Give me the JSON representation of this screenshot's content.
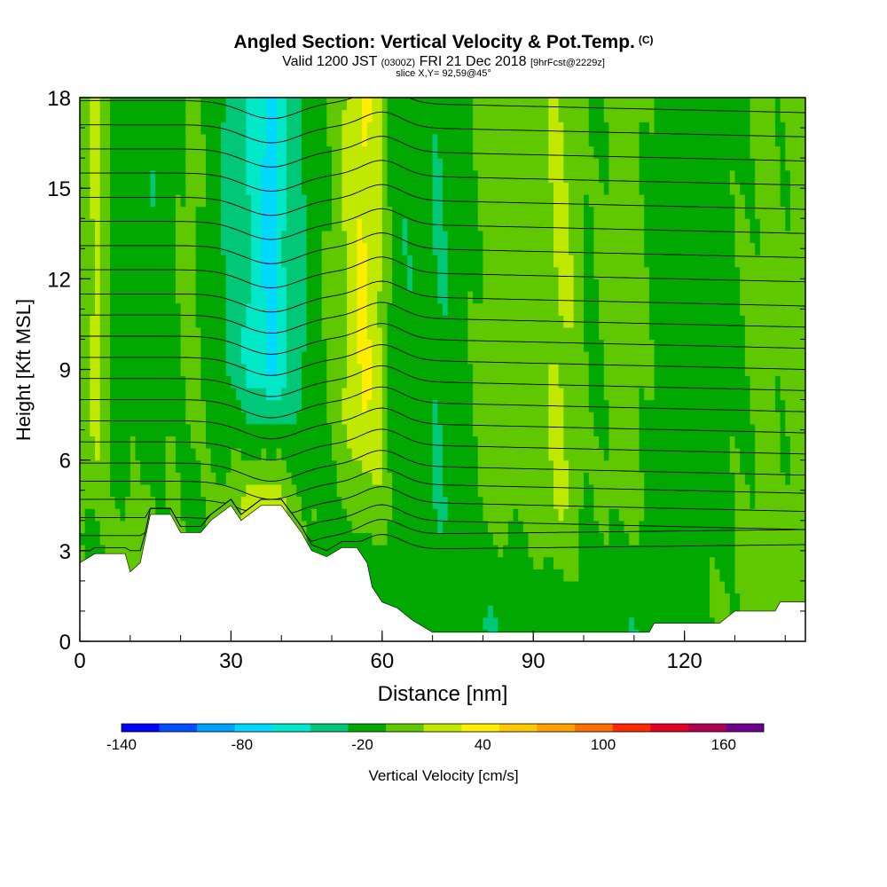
{
  "title": {
    "main": "Angled Section: Vertical Velocity & Pot.Temp.",
    "unit_tag": "(C)",
    "valid_prefix": "Valid 1200 JST",
    "valid_z": "(0300Z)",
    "valid_date": "FRI 21 Dec 2018",
    "forecast": "[9hrFcst@2229z]",
    "slice": "slice X,Y= 92,59@45°"
  },
  "colors": {
    "ground": "#ffffff",
    "contour": "#000000",
    "background": "#ffffff"
  },
  "chart_data": {
    "type": "heatmap",
    "xlabel": "Distance [nm]",
    "ylabel": "Height [Kft MSL]",
    "xlim": [
      0,
      144
    ],
    "ylim": [
      0,
      18
    ],
    "xticks": [
      0,
      30,
      60,
      90,
      120
    ],
    "yticks": [
      0,
      3,
      6,
      9,
      12,
      15,
      18
    ],
    "colorbar": {
      "label": "Vertical Velocity [cm/s]",
      "min": -140,
      "max": 180,
      "step": 20,
      "tick_labels": [
        "-140",
        "-80",
        "-20",
        "40",
        "100",
        "160"
      ],
      "tick_values": [
        -140,
        -80,
        -20,
        40,
        100,
        160
      ],
      "colors": [
        "#0000ff",
        "#0050ff",
        "#00a0ff",
        "#00d8ff",
        "#00e8c8",
        "#00c878",
        "#00a800",
        "#60c800",
        "#c0e800",
        "#ffee00",
        "#ffc800",
        "#ffa000",
        "#ff6e00",
        "#ff2800",
        "#e00028",
        "#b00050",
        "#6e0090"
      ]
    },
    "terrain": [
      [
        0,
        2.6
      ],
      [
        3,
        2.9
      ],
      [
        9,
        2.9
      ],
      [
        10,
        2.3
      ],
      [
        12,
        2.6
      ],
      [
        13,
        3.4
      ],
      [
        14,
        4.2
      ],
      [
        18,
        4.2
      ],
      [
        20,
        3.6
      ],
      [
        24,
        3.6
      ],
      [
        26,
        4.0
      ],
      [
        30,
        4.5
      ],
      [
        32,
        4.0
      ],
      [
        36,
        4.5
      ],
      [
        40,
        4.5
      ],
      [
        44,
        3.6
      ],
      [
        46,
        3.0
      ],
      [
        49,
        2.8
      ],
      [
        52,
        3.1
      ],
      [
        55,
        3.1
      ],
      [
        57,
        2.6
      ],
      [
        58,
        1.8
      ],
      [
        60,
        1.3
      ],
      [
        63,
        1.1
      ],
      [
        66,
        0.7
      ],
      [
        70,
        0.3
      ],
      [
        80,
        0.3
      ],
      [
        90,
        0.3
      ],
      [
        113,
        0.3
      ],
      [
        114,
        0.6
      ],
      [
        127,
        0.6
      ],
      [
        130,
        1.0
      ],
      [
        138,
        1.0
      ],
      [
        139,
        1.3
      ],
      [
        144,
        1.3
      ]
    ],
    "w_columns": [
      {
        "x": 0.5,
        "w": 10
      },
      {
        "x": 3.5,
        "w": 28
      },
      {
        "x": 7,
        "w": -14
      },
      {
        "x": 10,
        "w": -2
      },
      {
        "x": 14,
        "w": -18
      },
      {
        "x": 18,
        "w": -6
      },
      {
        "x": 22,
        "w": 6
      },
      {
        "x": 26,
        "w": -8
      },
      {
        "x": 29,
        "w": -22
      },
      {
        "x": 32,
        "w": -34
      },
      {
        "x": 35,
        "w": -48
      },
      {
        "x": 38,
        "w": -72
      },
      {
        "x": 41,
        "w": -38
      },
      {
        "x": 44,
        "w": -24
      },
      {
        "x": 47,
        "w": -6
      },
      {
        "x": 50,
        "w": 4
      },
      {
        "x": 53,
        "w": 22
      },
      {
        "x": 56,
        "w": 44
      },
      {
        "x": 59,
        "w": 30
      },
      {
        "x": 62,
        "w": -8
      },
      {
        "x": 65,
        "w": -18
      },
      {
        "x": 68,
        "w": -8
      },
      {
        "x": 71,
        "w": -22
      },
      {
        "x": 74,
        "w": -14
      },
      {
        "x": 77,
        "w": -4
      },
      {
        "x": 80,
        "w": 4
      },
      {
        "x": 84,
        "w": 10
      },
      {
        "x": 88,
        "w": 4
      },
      {
        "x": 92,
        "w": 12
      },
      {
        "x": 95,
        "w": 24
      },
      {
        "x": 98,
        "w": 16
      },
      {
        "x": 101,
        "w": -4
      },
      {
        "x": 105,
        "w": 4
      },
      {
        "x": 109,
        "w": 10
      },
      {
        "x": 113,
        "w": -2
      },
      {
        "x": 116,
        "w": -8
      },
      {
        "x": 120,
        "w": -12
      },
      {
        "x": 124,
        "w": -10
      },
      {
        "x": 128,
        "w": -6
      },
      {
        "x": 132,
        "w": 0
      },
      {
        "x": 136,
        "w": 6
      },
      {
        "x": 140,
        "w": 2
      },
      {
        "x": 143.5,
        "w": 8
      }
    ],
    "low_level_w": [
      {
        "x": 3,
        "w": -2
      },
      {
        "x": 10,
        "w": 8
      },
      {
        "x": 16,
        "w": 2
      },
      {
        "x": 22,
        "w": -4
      },
      {
        "x": 28,
        "w": 4
      },
      {
        "x": 36,
        "w": 30
      },
      {
        "x": 42,
        "w": 12
      },
      {
        "x": 48,
        "w": -6
      },
      {
        "x": 54,
        "w": -4
      },
      {
        "x": 60,
        "w": -8
      },
      {
        "x": 66,
        "w": -6
      },
      {
        "x": 72,
        "w": -10
      },
      {
        "x": 80,
        "w": -18
      },
      {
        "x": 88,
        "w": -16
      },
      {
        "x": 96,
        "w": -10
      },
      {
        "x": 104,
        "w": -14
      },
      {
        "x": 112,
        "w": -18
      },
      {
        "x": 120,
        "w": -8
      },
      {
        "x": 128,
        "w": 2
      },
      {
        "x": 136,
        "w": 6
      },
      {
        "x": 143,
        "w": 8
      }
    ],
    "theta_contours_kft_at_x0": [
      3.0,
      3.5,
      4.1,
      4.7,
      5.3,
      5.9,
      6.6,
      7.3,
      8.0,
      8.7,
      9.4,
      10.1,
      10.8,
      11.5,
      12.3,
      13.1,
      13.9,
      14.7,
      15.5,
      16.3,
      17.1,
      17.9
    ]
  }
}
